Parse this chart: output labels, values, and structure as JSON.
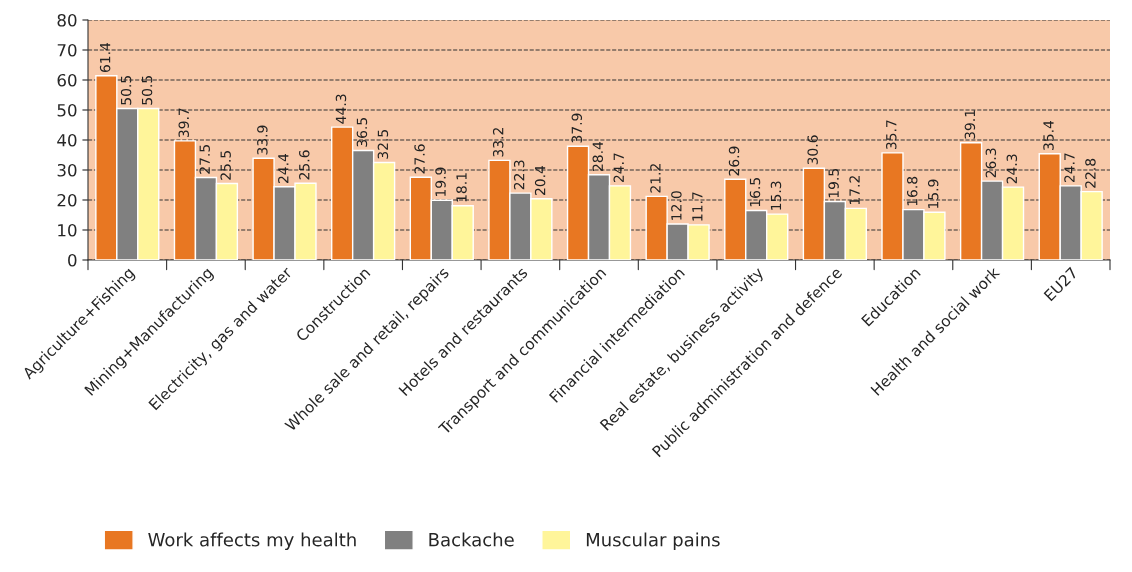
{
  "chart_data": {
    "type": "bar",
    "categories": [
      "Agriculture+Fishing",
      "Mining+Manufacturing",
      "Electricity, gas and water",
      "Construction",
      "Whole sale and retail, repairs",
      "Hotels and restaurants",
      "Transport and communication",
      "Financial intermediation",
      "Real estate, business activity",
      "Public administration and defence",
      "Education",
      "Health and social work",
      "EU27"
    ],
    "series": [
      {
        "name": "Work affects my health",
        "color": "#e87722",
        "values": [
          61.4,
          39.7,
          33.9,
          44.3,
          27.6,
          33.2,
          37.9,
          21.2,
          26.9,
          30.6,
          35.7,
          39.1,
          35.4
        ]
      },
      {
        "name": "Backache",
        "color": "#808080",
        "values": [
          50.5,
          27.5,
          24.4,
          36.5,
          19.9,
          22.3,
          28.4,
          12.0,
          16.5,
          19.5,
          16.8,
          26.3,
          24.7
        ],
        "value_labels": [
          "50.5",
          "27.5",
          "24.4",
          "36.5",
          "19.9",
          "22.3",
          "28.4",
          "12.0",
          "16.5",
          "19.5",
          "16.8",
          "26.3",
          "24.7"
        ]
      },
      {
        "name": "Muscular pains",
        "color": "#fff59a",
        "values": [
          50.5,
          25.5,
          25.6,
          32.5,
          18.1,
          20.4,
          24.7,
          11.7,
          15.3,
          17.2,
          15.9,
          24.3,
          22.8
        ]
      }
    ],
    "ylim": [
      0,
      80
    ],
    "yticks": [
      0,
      10,
      20,
      30,
      40,
      50,
      60,
      70,
      80
    ],
    "grid": "y",
    "legend": "bottom",
    "data_labels": true
  }
}
